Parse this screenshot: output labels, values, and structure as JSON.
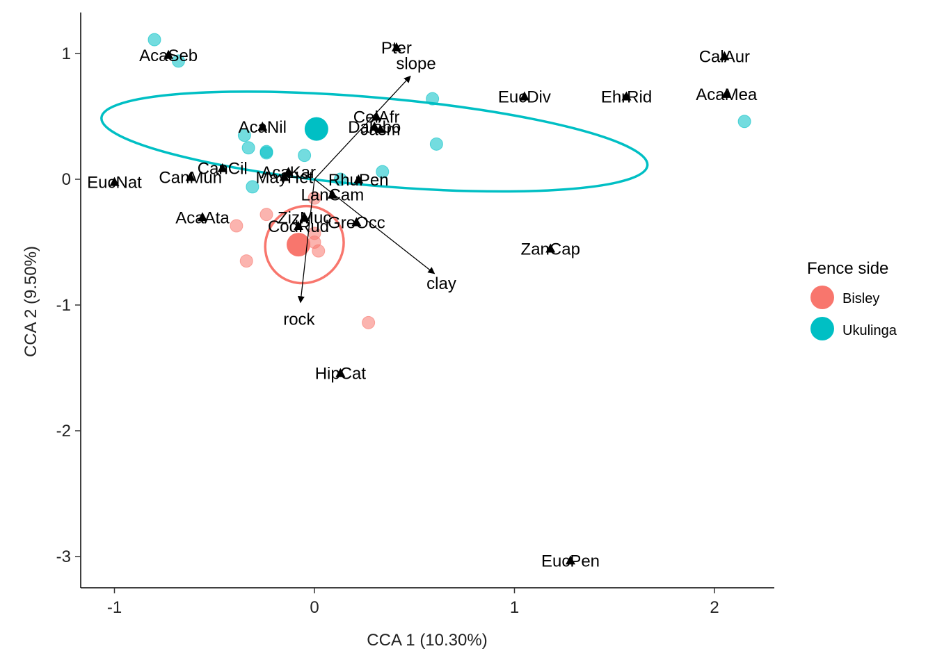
{
  "chart_data": {
    "type": "scatter",
    "xlabel": "CCA 1 (10.30%)",
    "ylabel": "CCA 2 (9.50%)",
    "xlim": [
      -1.17,
      2.3
    ],
    "ylim": [
      -3.25,
      1.32
    ],
    "xticks": [
      -1,
      0,
      1,
      2
    ],
    "yticks": [
      1,
      0,
      -1,
      -2,
      -3
    ],
    "xtick_labels": [
      "-1",
      "0",
      "1",
      "2"
    ],
    "ytick_labels": [
      "1",
      "0",
      "-1",
      "-2",
      "-3"
    ],
    "grid": false,
    "legend": {
      "title": "Fence side",
      "position": "right",
      "entries": [
        {
          "name": "Bisley",
          "color": "#F8766D"
        },
        {
          "name": "Ukulinga",
          "color": "#00BFC4"
        }
      ]
    },
    "groups": [
      {
        "name": "Bisley",
        "color": "#F8766D",
        "centroid": [
          -0.08,
          -0.52
        ],
        "ellipse": {
          "cx": -0.05,
          "cy": -0.52,
          "rx": 0.2,
          "ry": 0.3,
          "rotate": -36
        },
        "points": [
          [
            -0.39,
            -0.37
          ],
          [
            -0.24,
            -0.28
          ],
          [
            -0.34,
            -0.65
          ],
          [
            0.0,
            -0.5
          ],
          [
            0.02,
            -0.57
          ],
          [
            0.0,
            -0.43
          ],
          [
            0.0,
            -0.15
          ],
          [
            0.27,
            -1.14
          ]
        ]
      },
      {
        "name": "Ukulinga",
        "color": "#00BFC4",
        "centroid": [
          0.01,
          0.4
        ],
        "ellipse": {
          "cx": 0.3,
          "cy": 0.3,
          "rx": 1.37,
          "ry": 0.35,
          "rotate": 5
        },
        "points": [
          [
            -0.8,
            1.11
          ],
          [
            -0.68,
            0.94
          ],
          [
            -0.35,
            0.35
          ],
          [
            -0.33,
            0.25
          ],
          [
            -0.24,
            0.21
          ],
          [
            -0.24,
            0.22
          ],
          [
            -0.05,
            0.19
          ],
          [
            -0.31,
            -0.06
          ],
          [
            0.13,
            0.0
          ],
          [
            0.34,
            0.06
          ],
          [
            0.59,
            0.64
          ],
          [
            0.61,
            0.28
          ],
          [
            2.15,
            0.46
          ]
        ]
      }
    ],
    "species": [
      {
        "label": "AcaSeb",
        "x": -0.73,
        "y": 0.99
      },
      {
        "label": "Pter",
        "x": 0.41,
        "y": 1.05
      },
      {
        "label": "CalAur",
        "x": 2.05,
        "y": 0.98
      },
      {
        "label": "EucDiv",
        "x": 1.05,
        "y": 0.66
      },
      {
        "label": "EhrRid",
        "x": 1.56,
        "y": 0.66
      },
      {
        "label": "AcaMea",
        "x": 2.06,
        "y": 0.68
      },
      {
        "label": "CelAfr",
        "x": 0.31,
        "y": 0.5
      },
      {
        "label": "AcaNil",
        "x": -0.26,
        "y": 0.42
      },
      {
        "label": "Dalobo",
        "x": 0.3,
        "y": 0.42
      },
      {
        "label": "Jasm",
        "x": 0.33,
        "y": 0.4
      },
      {
        "label": "CanCil",
        "x": -0.46,
        "y": 0.09
      },
      {
        "label": "AcaKar",
        "x": -0.13,
        "y": 0.06
      },
      {
        "label": "CanMun",
        "x": -0.62,
        "y": 0.02
      },
      {
        "label": "MayHet",
        "x": -0.15,
        "y": 0.02
      },
      {
        "label": "RhuPen",
        "x": 0.22,
        "y": 0.0
      },
      {
        "label": "EucNat",
        "x": -1.0,
        "y": -0.02
      },
      {
        "label": "LanCam",
        "x": 0.09,
        "y": -0.12
      },
      {
        "label": "AcaAta",
        "x": -0.56,
        "y": -0.3
      },
      {
        "label": "ZizMuc",
        "x": -0.05,
        "y": -0.3
      },
      {
        "label": "GreOcc",
        "x": 0.21,
        "y": -0.34
      },
      {
        "label": "CodRud",
        "x": -0.08,
        "y": -0.37
      },
      {
        "label": "ZanCap",
        "x": 1.18,
        "y": -0.55
      },
      {
        "label": "HipCat",
        "x": 0.13,
        "y": -1.54
      },
      {
        "label": "EucPen",
        "x": 1.28,
        "y": -3.03
      }
    ],
    "env_vectors": [
      {
        "label": "slope",
        "x": 0.48,
        "y": 0.82
      },
      {
        "label": "clay",
        "x": 0.6,
        "y": -0.75
      },
      {
        "label": "rock",
        "x": -0.07,
        "y": -0.98
      }
    ]
  },
  "colors": {
    "bisley": "#F8766D",
    "ukulinga": "#00BFC4",
    "axis": "#000000",
    "text": "#000000"
  }
}
